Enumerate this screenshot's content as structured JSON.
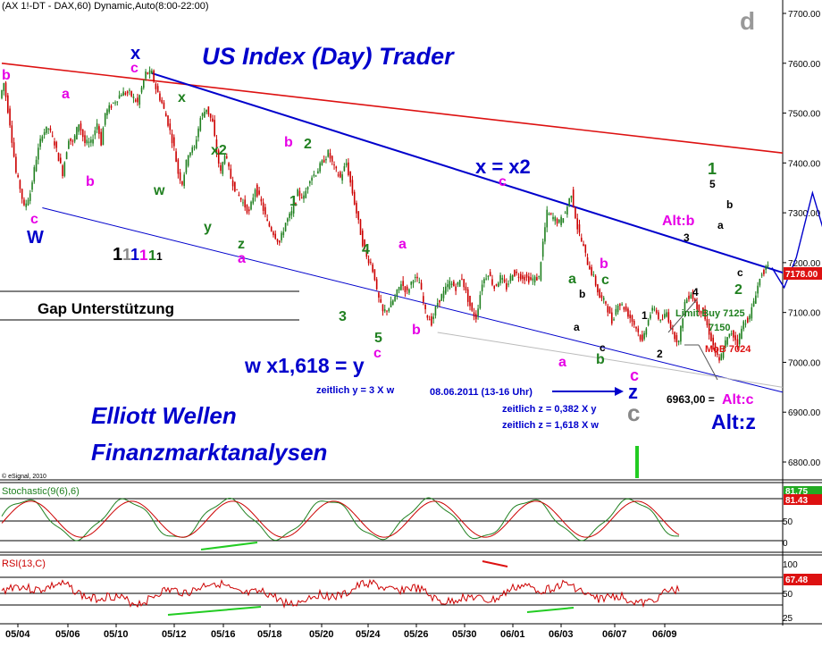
{
  "header": "(AX 1!-DT - DAX,60) Dynamic,Auto(8:00-22:00)",
  "watermark_letter": "d",
  "esignal": "© eSignal, 2010",
  "titles": {
    "main": "US Index (Day) Trader",
    "bottom1": "Elliott Wellen",
    "bottom2": "Finanzmarktanalysen"
  },
  "annotations": {
    "gap": "Gap Unterstützung",
    "w_eq": "w x1,618 = y",
    "zeitlich_y": "zeitlich y = 3 X w",
    "x_eq": "x = x2",
    "date_note": "08.06.2011 (13-16 Uhr)",
    "zeitlich_z1": "zeitlich z = 0,382 X y",
    "zeitlich_z2": "zeitlich z = 1,618 X w",
    "alt_b": "Alt:b",
    "limit_buy1": "Limit Buy 7125",
    "limit_buy2": "7150",
    "mob": "MoB 7024",
    "alt_c_val": "6963,00 =",
    "alt_c": "Alt:c",
    "alt_z": "Alt:z"
  },
  "wave_labels": [
    {
      "t": "b",
      "c": "#e600e6"
    },
    {
      "t": "c",
      "c": "#e600e6"
    },
    {
      "t": "W",
      "c": "#0000cc"
    },
    {
      "t": "a",
      "c": "#e600e6"
    },
    {
      "t": "b",
      "c": "#e600e6"
    },
    {
      "t": "x",
      "c": "#0000cc"
    },
    {
      "t": "c",
      "c": "#e600e6"
    },
    {
      "t": "x",
      "c": "#208020"
    },
    {
      "t": "w",
      "c": "#208020"
    },
    {
      "t": "x2",
      "c": "#208020"
    },
    {
      "t": "y",
      "c": "#208020"
    },
    {
      "t": "z",
      "c": "#208020"
    },
    {
      "t": "a",
      "c": "#e600e6"
    },
    {
      "t": "b",
      "c": "#e600e6"
    },
    {
      "t": "2",
      "c": "#208020"
    },
    {
      "t": "1",
      "c": "#208020"
    },
    {
      "t": "3",
      "c": "#208020"
    },
    {
      "t": "4",
      "c": "#208020"
    },
    {
      "t": "a",
      "c": "#e600e6"
    },
    {
      "t": "5",
      "c": "#208020"
    },
    {
      "t": "c",
      "c": "#e600e6"
    },
    {
      "t": "b",
      "c": "#e600e6"
    },
    {
      "t": "c",
      "c": "#e600e6"
    },
    {
      "t": "a",
      "c": "#208020"
    },
    {
      "t": "b",
      "c": "#e600e6"
    },
    {
      "t": "c",
      "c": "#208020"
    },
    {
      "t": "b",
      "c": "#000000"
    },
    {
      "t": "a",
      "c": "#000000"
    },
    {
      "t": "c",
      "c": "#000000"
    },
    {
      "t": "b",
      "c": "#208020"
    },
    {
      "t": "a",
      "c": "#e600e6"
    },
    {
      "t": "c",
      "c": "#e600e6"
    },
    {
      "t": "z",
      "c": "#0000cc"
    },
    {
      "t": "c",
      "c": "#888888"
    },
    {
      "t": "1",
      "c": "#000000"
    },
    {
      "t": "2",
      "c": "#000000"
    },
    {
      "t": "3",
      "c": "#000000"
    },
    {
      "t": "4",
      "c": "#000000"
    },
    {
      "t": "5",
      "c": "#000000"
    },
    {
      "t": "a",
      "c": "#000000"
    },
    {
      "t": "b",
      "c": "#000000"
    },
    {
      "t": "c",
      "c": "#000000"
    },
    {
      "t": "1",
      "c": "#208020"
    },
    {
      "t": "2",
      "c": "#208020"
    }
  ],
  "degree_marks": [
    {
      "t": "1",
      "c": "#000000"
    },
    {
      "t": "1",
      "c": "#888888"
    },
    {
      "t": "1",
      "c": "#0000cc"
    },
    {
      "t": "1",
      "c": "#e600e6"
    },
    {
      "t": "1",
      "c": "#208020"
    },
    {
      "t": "1",
      "c": "#000000"
    }
  ],
  "colors": {
    "price_up": "#208020",
    "price_down": "#cc0000",
    "red_trend": "#dd1111",
    "blue_trend": "#0000cc",
    "stoch_k": "#208020",
    "stoch_d": "#cc0000",
    "rsi": "#cc0000",
    "price_tag": "#dd1111"
  },
  "chart_data": {
    "type": "candlestick",
    "x_dates": [
      "05/04",
      "05/06",
      "05/10",
      "05/12",
      "05/16",
      "05/18",
      "05/20",
      "05/24",
      "05/26",
      "05/30",
      "06/01",
      "06/03",
      "06/07",
      "06/09"
    ],
    "price_axis": [
      "7700.00",
      "7600.00",
      "7500.00",
      "7400.00",
      "7300.00",
      "7200.00",
      "7100.00",
      "7000.00",
      "6900.00",
      "6800.00"
    ],
    "ylim": [
      6760,
      7720
    ],
    "last_price": "7178.00",
    "price_path": [
      [
        0,
        7530
      ],
      [
        4,
        7560
      ],
      [
        10,
        7480
      ],
      [
        16,
        7380
      ],
      [
        20,
        7350
      ],
      [
        24,
        7310
      ],
      [
        30,
        7340
      ],
      [
        36,
        7410
      ],
      [
        42,
        7460
      ],
      [
        48,
        7470
      ],
      [
        54,
        7440
      ],
      [
        58,
        7410
      ],
      [
        62,
        7380
      ],
      [
        68,
        7450
      ],
      [
        72,
        7440
      ],
      [
        78,
        7480
      ],
      [
        84,
        7440
      ],
      [
        90,
        7440
      ],
      [
        96,
        7480
      ],
      [
        100,
        7440
      ],
      [
        104,
        7500
      ],
      [
        112,
        7520
      ],
      [
        120,
        7540
      ],
      [
        128,
        7540
      ],
      [
        136,
        7520
      ],
      [
        144,
        7580
      ],
      [
        150,
        7580
      ],
      [
        154,
        7550
      ],
      [
        160,
        7520
      ],
      [
        166,
        7480
      ],
      [
        172,
        7430
      ],
      [
        176,
        7380
      ],
      [
        180,
        7360
      ],
      [
        186,
        7420
      ],
      [
        192,
        7430
      ],
      [
        198,
        7490
      ],
      [
        204,
        7510
      ],
      [
        210,
        7480
      ],
      [
        214,
        7420
      ],
      [
        218,
        7380
      ],
      [
        222,
        7420
      ],
      [
        228,
        7370
      ],
      [
        234,
        7340
      ],
      [
        240,
        7320
      ],
      [
        246,
        7300
      ],
      [
        252,
        7350
      ],
      [
        258,
        7320
      ],
      [
        264,
        7280
      ],
      [
        270,
        7260
      ],
      [
        276,
        7240
      ],
      [
        282,
        7280
      ],
      [
        288,
        7300
      ],
      [
        294,
        7340
      ],
      [
        300,
        7330
      ],
      [
        306,
        7370
      ],
      [
        312,
        7380
      ],
      [
        318,
        7400
      ],
      [
        324,
        7420
      ],
      [
        330,
        7390
      ],
      [
        336,
        7370
      ],
      [
        342,
        7400
      ],
      [
        346,
        7360
      ],
      [
        350,
        7320
      ],
      [
        354,
        7280
      ],
      [
        358,
        7240
      ],
      [
        362,
        7210
      ],
      [
        366,
        7200
      ],
      [
        370,
        7170
      ],
      [
        372,
        7140
      ],
      [
        378,
        7100
      ],
      [
        384,
        7110
      ],
      [
        390,
        7130
      ],
      [
        396,
        7160
      ],
      [
        402,
        7140
      ],
      [
        408,
        7170
      ],
      [
        414,
        7160
      ],
      [
        420,
        7100
      ],
      [
        426,
        7080
      ],
      [
        432,
        7120
      ],
      [
        438,
        7140
      ],
      [
        444,
        7160
      ],
      [
        450,
        7150
      ],
      [
        456,
        7170
      ],
      [
        460,
        7140
      ],
      [
        466,
        7100
      ],
      [
        470,
        7090
      ],
      [
        476,
        7160
      ],
      [
        482,
        7180
      ],
      [
        488,
        7150
      ],
      [
        494,
        7170
      ],
      [
        500,
        7150
      ],
      [
        506,
        7180
      ],
      [
        512,
        7175
      ],
      [
        518,
        7170
      ],
      [
        524,
        7165
      ],
      [
        532,
        7170
      ],
      [
        536,
        7240
      ],
      [
        540,
        7300
      ],
      [
        546,
        7290
      ],
      [
        552,
        7280
      ],
      [
        558,
        7300
      ],
      [
        564,
        7340
      ],
      [
        570,
        7270
      ],
      [
        576,
        7230
      ],
      [
        580,
        7200
      ],
      [
        586,
        7170
      ],
      [
        592,
        7130
      ],
      [
        598,
        7120
      ],
      [
        604,
        7080
      ],
      [
        610,
        7120
      ],
      [
        616,
        7110
      ],
      [
        622,
        7090
      ],
      [
        628,
        7070
      ],
      [
        634,
        7040
      ],
      [
        640,
        7090
      ],
      [
        646,
        7110
      ],
      [
        652,
        7080
      ],
      [
        658,
        7100
      ],
      [
        664,
        7060
      ],
      [
        670,
        7040
      ],
      [
        676,
        7120
      ],
      [
        682,
        7140
      ],
      [
        688,
        7110
      ],
      [
        694,
        7100
      ],
      [
        700,
        7060
      ],
      [
        706,
        7020
      ],
      [
        710,
        7000
      ],
      [
        716,
        7040
      ],
      [
        722,
        7060
      ],
      [
        728,
        7040
      ],
      [
        734,
        7080
      ],
      [
        740,
        7090
      ],
      [
        746,
        7140
      ],
      [
        752,
        7180
      ],
      [
        758,
        7190
      ]
    ],
    "projection_path": [
      [
        760,
        7190
      ],
      [
        772,
        7150
      ],
      [
        784,
        7210
      ],
      [
        800,
        7340
      ],
      [
        816,
        7230
      ],
      [
        830,
        7200
      ],
      [
        838,
        7230
      ]
    ],
    "red_trendline": [
      [
        0,
        7600
      ],
      [
        876,
        7420
      ]
    ],
    "blue_trendline": [
      [
        148,
        7580
      ],
      [
        876,
        7180
      ]
    ],
    "lower_channel": [
      [
        40,
        7310
      ],
      [
        876,
        6940
      ]
    ],
    "gray_line": [
      [
        430,
        7060
      ],
      [
        876,
        6950
      ]
    ],
    "stochastic": {
      "title": "Stochastic(9(6),6)",
      "values": [
        "81.75",
        "81.43"
      ],
      "levels": [
        "100",
        "50",
        "0"
      ]
    },
    "rsi": {
      "title": "RSI(13,C)",
      "values": [
        "67.48"
      ],
      "levels": [
        "100",
        "50",
        "25"
      ]
    }
  }
}
